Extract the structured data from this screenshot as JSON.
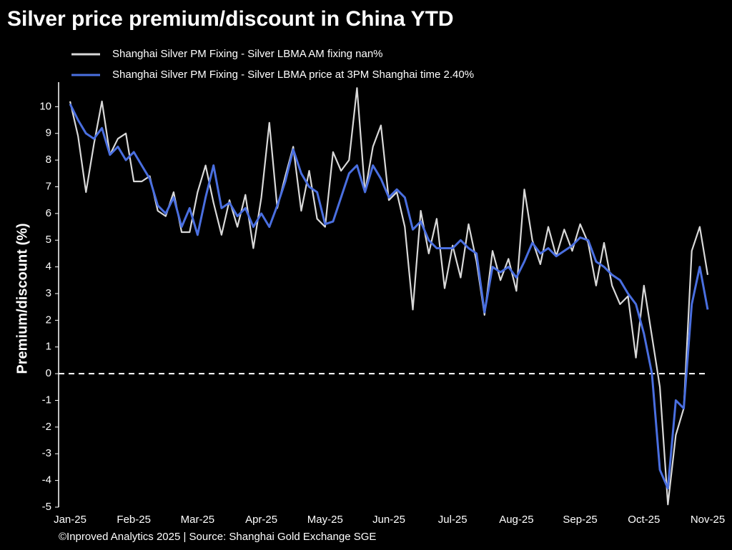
{
  "chart_data": {
    "type": "line",
    "title": "Silver price premium/discount in China YTD",
    "ylabel": "Premium/discount (%)",
    "footer": "©Inproved Analytics 2025 | Source: Shanghai Gold Exchange SGE",
    "categories": [
      "Jan-25",
      null,
      null,
      null,
      null,
      null,
      null,
      null,
      "Feb-25",
      null,
      null,
      null,
      null,
      null,
      null,
      null,
      "Mar-25",
      null,
      null,
      null,
      null,
      null,
      null,
      null,
      "Apr-25",
      null,
      null,
      null,
      null,
      null,
      null,
      null,
      "May-25",
      null,
      null,
      null,
      null,
      null,
      null,
      null,
      "Jun-25",
      null,
      null,
      null,
      null,
      null,
      null,
      null,
      "Jul-25",
      null,
      null,
      null,
      null,
      null,
      null,
      null,
      "Aug-25",
      null,
      null,
      null,
      null,
      null,
      null,
      null,
      "Sep-25",
      null,
      null,
      null,
      null,
      null,
      null,
      null,
      "Oct-25",
      null,
      null,
      null,
      null,
      null,
      null,
      null,
      "Nov-25"
    ],
    "series": [
      {
        "name": "Shanghai Silver PM Fixing - Silver LBMA AM fixing nan%",
        "color": "#d9d9d9",
        "values": [
          10.2,
          8.9,
          6.8,
          8.6,
          10.2,
          8.2,
          8.8,
          9.0,
          7.2,
          7.2,
          7.4,
          6.1,
          5.9,
          6.8,
          5.3,
          5.3,
          6.8,
          7.8,
          6.4,
          5.2,
          6.5,
          5.5,
          6.7,
          4.7,
          6.6,
          9.4,
          6.2,
          7.4,
          8.5,
          6.1,
          7.6,
          5.8,
          5.5,
          8.3,
          7.6,
          8.0,
          10.7,
          6.8,
          8.5,
          9.3,
          6.5,
          6.8,
          5.5,
          2.4,
          6.1,
          4.5,
          5.8,
          3.2,
          4.8,
          3.6,
          5.6,
          4.2,
          2.2,
          4.6,
          3.5,
          4.3,
          3.1,
          6.9,
          5.0,
          4.1,
          5.5,
          4.4,
          5.4,
          4.6,
          5.6,
          4.9,
          3.3,
          4.9,
          3.3,
          2.6,
          2.9,
          0.6,
          3.3,
          1.4,
          -0.5,
          -4.9,
          -2.3,
          -1.3,
          4.6,
          5.5,
          3.7
        ]
      },
      {
        "name": "Shanghai Silver PM Fixing - Silver LBMA price at 3PM Shanghai time 2.40%",
        "color": "#4a6fe0",
        "values": [
          10.1,
          9.5,
          9.0,
          8.8,
          9.2,
          8.2,
          8.5,
          8.0,
          8.3,
          7.8,
          7.3,
          6.3,
          6.0,
          6.6,
          5.5,
          6.2,
          5.2,
          6.6,
          7.8,
          6.2,
          6.4,
          5.9,
          6.2,
          5.5,
          6.0,
          5.5,
          6.3,
          7.2,
          8.4,
          7.5,
          7.0,
          6.8,
          5.6,
          5.7,
          6.6,
          7.5,
          7.8,
          6.8,
          7.8,
          7.3,
          6.6,
          6.9,
          6.6,
          5.4,
          5.7,
          5.0,
          4.7,
          4.7,
          4.7,
          5.0,
          4.7,
          4.5,
          2.3,
          4.0,
          3.8,
          4.0,
          3.6,
          4.2,
          4.9,
          4.5,
          4.7,
          4.4,
          4.6,
          4.8,
          5.1,
          5.0,
          4.2,
          4.0,
          3.7,
          3.5,
          3.0,
          2.6,
          1.5,
          0.0,
          -3.6,
          -4.3,
          -1.0,
          -1.3,
          2.6,
          4.0,
          2.4
        ]
      }
    ],
    "reference_line": 0,
    "ylim": [
      -5,
      11
    ],
    "yticks": [
      -5,
      -4,
      -3,
      -2,
      -1,
      0,
      1,
      2,
      3,
      4,
      5,
      6,
      7,
      8,
      9,
      10
    ]
  }
}
